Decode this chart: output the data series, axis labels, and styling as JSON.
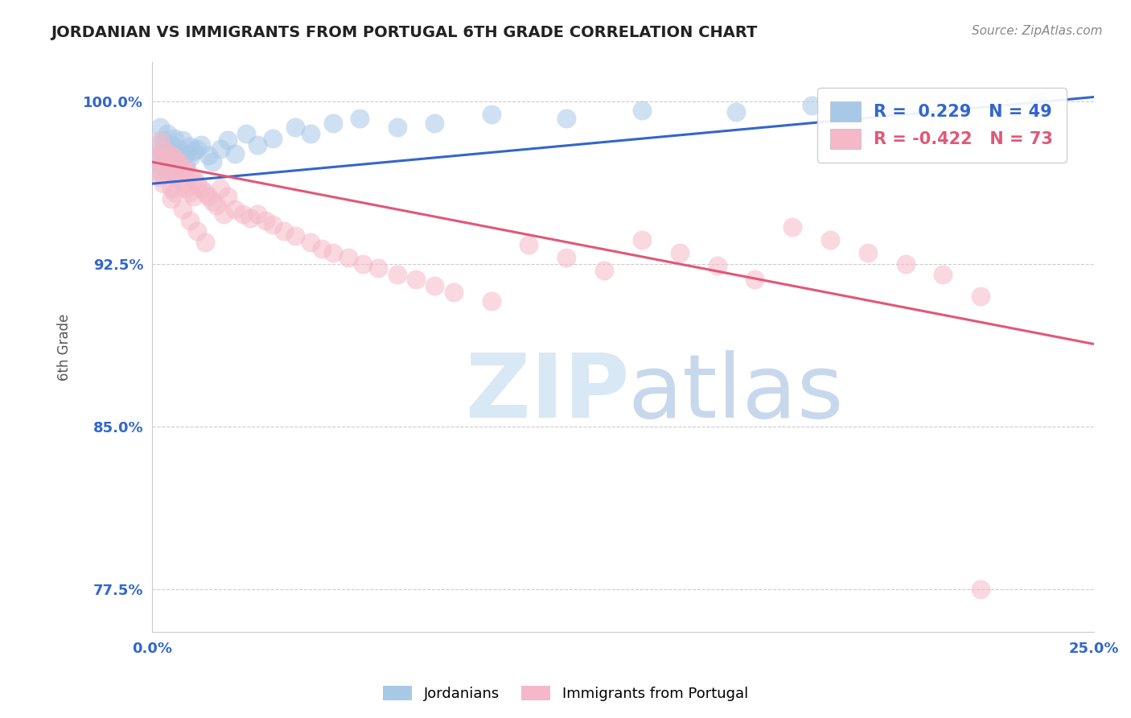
{
  "title": "JORDANIAN VS IMMIGRANTS FROM PORTUGAL 6TH GRADE CORRELATION CHART",
  "source_text": "Source: ZipAtlas.com",
  "ylabel": "6th Grade",
  "xlim": [
    0.0,
    0.25
  ],
  "ylim": [
    0.755,
    1.018
  ],
  "yticks": [
    0.775,
    0.85,
    0.925,
    1.0
  ],
  "ytick_labels": [
    "77.5%",
    "85.0%",
    "92.5%",
    "100.0%"
  ],
  "blue_R": 0.229,
  "blue_N": 49,
  "pink_R": -0.422,
  "pink_N": 73,
  "blue_color": "#a8c8e8",
  "pink_color": "#f5b8c8",
  "blue_line_color": "#3366cc",
  "pink_line_color": "#e05878",
  "legend_label_blue": "Jordanians",
  "legend_label_pink": "Immigrants from Portugal",
  "blue_line_x0": 0.0,
  "blue_line_y0": 0.962,
  "blue_line_x1": 0.25,
  "blue_line_y1": 1.002,
  "pink_line_x0": 0.0,
  "pink_line_y0": 0.972,
  "pink_line_x1": 0.25,
  "pink_line_y1": 0.888,
  "blue_scatter_x": [
    0.001,
    0.001,
    0.002,
    0.002,
    0.002,
    0.003,
    0.003,
    0.003,
    0.004,
    0.004,
    0.004,
    0.005,
    0.005,
    0.005,
    0.006,
    0.006,
    0.007,
    0.007,
    0.008,
    0.008,
    0.009,
    0.009,
    0.01,
    0.01,
    0.011,
    0.012,
    0.013,
    0.015,
    0.016,
    0.018,
    0.02,
    0.022,
    0.025,
    0.028,
    0.032,
    0.038,
    0.042,
    0.048,
    0.055,
    0.065,
    0.075,
    0.09,
    0.11,
    0.13,
    0.155,
    0.175,
    0.195,
    0.215,
    0.235
  ],
  "blue_scatter_y": [
    0.98,
    0.972,
    0.988,
    0.975,
    0.968,
    0.982,
    0.976,
    0.97,
    0.985,
    0.978,
    0.972,
    0.98,
    0.974,
    0.968,
    0.983,
    0.975,
    0.978,
    0.972,
    0.982,
    0.975,
    0.976,
    0.97,
    0.979,
    0.974,
    0.977,
    0.978,
    0.98,
    0.975,
    0.972,
    0.978,
    0.982,
    0.976,
    0.985,
    0.98,
    0.983,
    0.988,
    0.985,
    0.99,
    0.992,
    0.988,
    0.99,
    0.994,
    0.992,
    0.996,
    0.995,
    0.998,
    0.997,
    0.999,
    1.0
  ],
  "pink_scatter_x": [
    0.001,
    0.001,
    0.002,
    0.002,
    0.002,
    0.003,
    0.003,
    0.003,
    0.004,
    0.004,
    0.005,
    0.005,
    0.005,
    0.006,
    0.006,
    0.006,
    0.007,
    0.007,
    0.008,
    0.008,
    0.009,
    0.009,
    0.01,
    0.01,
    0.011,
    0.011,
    0.012,
    0.013,
    0.014,
    0.015,
    0.016,
    0.017,
    0.018,
    0.019,
    0.02,
    0.022,
    0.024,
    0.026,
    0.028,
    0.03,
    0.032,
    0.035,
    0.038,
    0.042,
    0.045,
    0.048,
    0.052,
    0.056,
    0.06,
    0.065,
    0.07,
    0.075,
    0.08,
    0.09,
    0.1,
    0.11,
    0.12,
    0.13,
    0.14,
    0.15,
    0.16,
    0.17,
    0.18,
    0.19,
    0.2,
    0.21,
    0.005,
    0.008,
    0.01,
    0.012,
    0.014,
    0.22,
    0.22
  ],
  "pink_scatter_y": [
    0.975,
    0.968,
    0.982,
    0.974,
    0.965,
    0.978,
    0.97,
    0.962,
    0.976,
    0.969,
    0.975,
    0.967,
    0.96,
    0.974,
    0.966,
    0.958,
    0.972,
    0.964,
    0.97,
    0.962,
    0.968,
    0.96,
    0.966,
    0.958,
    0.964,
    0.956,
    0.962,
    0.96,
    0.958,
    0.956,
    0.954,
    0.952,
    0.96,
    0.948,
    0.956,
    0.95,
    0.948,
    0.946,
    0.948,
    0.945,
    0.943,
    0.94,
    0.938,
    0.935,
    0.932,
    0.93,
    0.928,
    0.925,
    0.923,
    0.92,
    0.918,
    0.915,
    0.912,
    0.908,
    0.934,
    0.928,
    0.922,
    0.936,
    0.93,
    0.924,
    0.918,
    0.942,
    0.936,
    0.93,
    0.925,
    0.92,
    0.955,
    0.95,
    0.945,
    0.94,
    0.935,
    0.91,
    0.775
  ],
  "grid_color": "#cccccc",
  "background_color": "#ffffff",
  "title_color": "#222222",
  "axis_label_color": "#555555",
  "tick_label_color": "#3366cc",
  "source_color": "#888888"
}
